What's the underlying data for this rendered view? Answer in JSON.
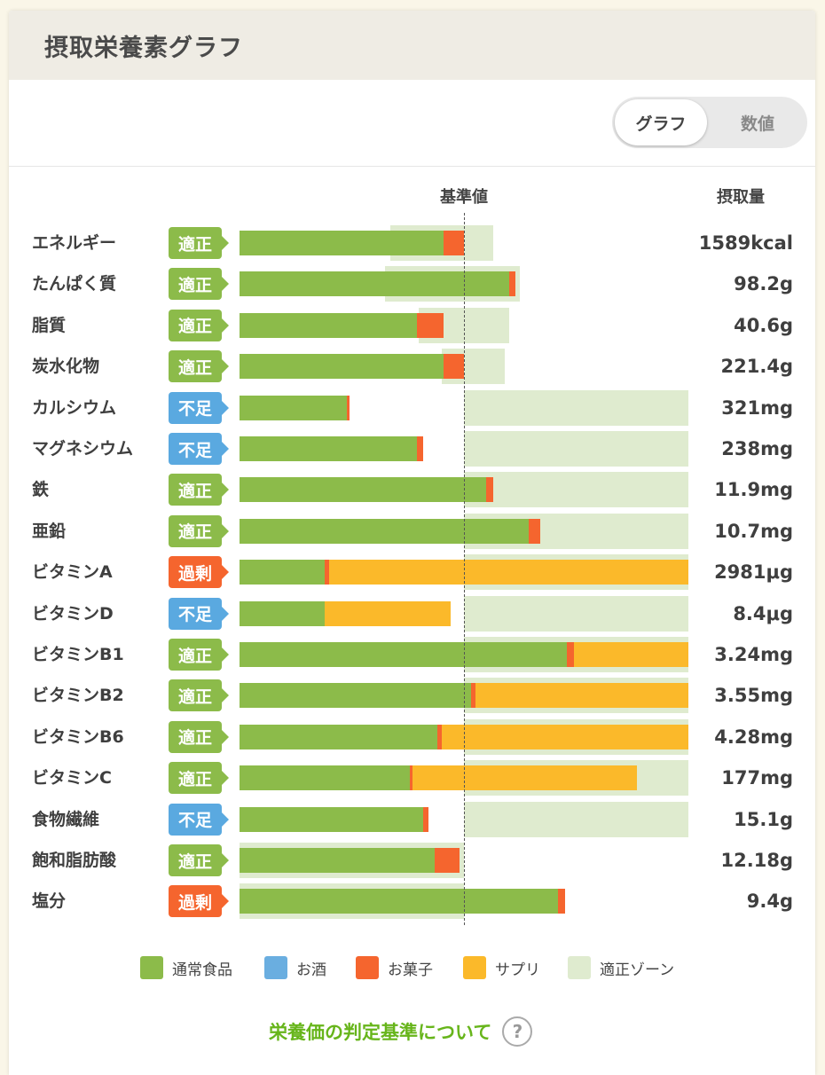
{
  "header": {
    "title": "摂取栄養素グラフ"
  },
  "view_toggle": {
    "active": "グラフ",
    "inactive": "数値"
  },
  "columns": {
    "reference": "基準値",
    "intake": "摂取量"
  },
  "colors": {
    "normal_food": "#8cbb4a",
    "alcohol": "#6aaee0",
    "snacks": "#f5652e",
    "supplement": "#fbb92a",
    "zone": "#dfebcf",
    "status_ok": "#8cbb4a",
    "status_low": "#5aa9e0",
    "status_high": "#f5652e"
  },
  "chart_data": {
    "type": "bar",
    "title": "摂取栄養素グラフ",
    "orientation": "horizontal",
    "stacked": true,
    "reference_label": "基準値",
    "value_unit": "percent of 基準値",
    "xlim": [
      0,
      200
    ],
    "categories": [
      "エネルギー",
      "たんぱく質",
      "脂質",
      "炭水化物",
      "カルシウム",
      "マグネシウム",
      "鉄",
      "亜鉛",
      "ビタミンA",
      "ビタミンD",
      "ビタミンB1",
      "ビタミンB2",
      "ビタミンB6",
      "ビタミンC",
      "食物繊維",
      "飽和脂肪酸",
      "塩分"
    ],
    "status": [
      "適正",
      "適正",
      "適正",
      "適正",
      "不足",
      "不足",
      "適正",
      "適正",
      "過剰",
      "不足",
      "適正",
      "適正",
      "適正",
      "適正",
      "不足",
      "適正",
      "過剰"
    ],
    "intake": [
      "1589kcal",
      "98.2g",
      "40.6g",
      "221.4g",
      "321mg",
      "238mg",
      "11.9mg",
      "10.7mg",
      "2981μg",
      "8.4μg",
      "3.24mg",
      "3.55mg",
      "4.28mg",
      "177mg",
      "15.1g",
      "12.18g",
      "9.4g"
    ],
    "series": [
      {
        "name": "通常食品",
        "values": [
          91,
          120,
          79,
          91,
          48,
          79,
          110,
          129,
          38,
          38,
          146,
          103,
          88,
          76,
          82,
          87,
          142
        ]
      },
      {
        "name": "お酒",
        "values": [
          0,
          0,
          0,
          0,
          0,
          0,
          0,
          0,
          0,
          0,
          0,
          0,
          0,
          0,
          0,
          0,
          0
        ]
      },
      {
        "name": "お菓子",
        "values": [
          9,
          3,
          12,
          9,
          1,
          3,
          3,
          5,
          2,
          0,
          3,
          2,
          2,
          1,
          2,
          11,
          3
        ]
      },
      {
        "name": "サプリ",
        "values": [
          0,
          0,
          0,
          0,
          0,
          0,
          0,
          0,
          160,
          56,
          51,
          95,
          110,
          100,
          0,
          0,
          0
        ]
      }
    ],
    "zone": [
      [
        67,
        113
      ],
      [
        65,
        125
      ],
      [
        80,
        120
      ],
      [
        90,
        118
      ],
      [
        100,
        200
      ],
      [
        100,
        200
      ],
      [
        100,
        200
      ],
      [
        100,
        200
      ],
      [
        100,
        200
      ],
      [
        100,
        200
      ],
      [
        100,
        200
      ],
      [
        100,
        200
      ],
      [
        100,
        200
      ],
      [
        100,
        200
      ],
      [
        100,
        200
      ],
      [
        0,
        100
      ],
      [
        0,
        100
      ]
    ],
    "legend": [
      "通常食品",
      "お酒",
      "お菓子",
      "サプリ",
      "適正ゾーン"
    ]
  },
  "footer": {
    "link_text": "栄養価の判定基準について",
    "help_icon": "?"
  }
}
